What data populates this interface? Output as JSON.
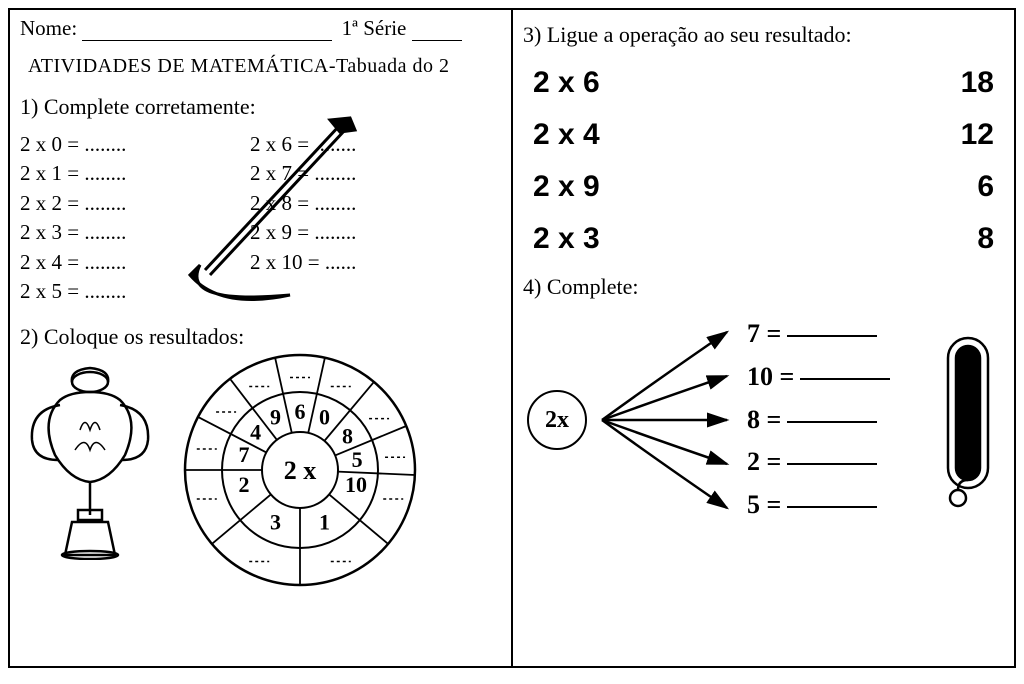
{
  "header": {
    "name_label": "Nome:",
    "serie_label": "1ª Série"
  },
  "title": "ATIVIDADES  DE  MATEMÁTICA-Tabuada do 2",
  "q1": {
    "title": "1) Complete corretamente:",
    "left": [
      "2 x 0 = ........",
      "2 x 1 = ........",
      "2 x 2 = ........",
      "2 x 3 = ........",
      "2 x 4 = ........",
      "2 x 5 = ........"
    ],
    "right": [
      "2 x 6 = ........",
      "2 x 7 = ........",
      "2 x 8 = ........",
      "2 x 9 = ........",
      "2 x 10 = ......"
    ]
  },
  "q2": {
    "title": "2) Coloque os resultados:",
    "center": "2 x",
    "ring": [
      "2",
      "7",
      "4",
      "9",
      "6",
      "0",
      "8",
      "5",
      "10",
      "1",
      "3"
    ],
    "ring_angles": [
      -105,
      -75,
      -50,
      -25,
      0,
      25,
      55,
      80,
      105,
      155,
      -155
    ]
  },
  "q3": {
    "title": "3) Ligue  a  operação ao seu resultado:",
    "rows": [
      {
        "expr": "2  x  6",
        "ans": "18"
      },
      {
        "expr": "2  x  4",
        "ans": "12"
      },
      {
        "expr": "2  x  9",
        "ans": "6"
      },
      {
        "expr": "2  x  3",
        "ans": "8"
      }
    ]
  },
  "q4": {
    "title": "4) Complete:",
    "hub": "2x",
    "items": [
      "7 =",
      "10 =",
      "8 =",
      "2 =",
      "5 ="
    ]
  },
  "colors": {
    "ink": "#000000",
    "paper": "#ffffff"
  }
}
